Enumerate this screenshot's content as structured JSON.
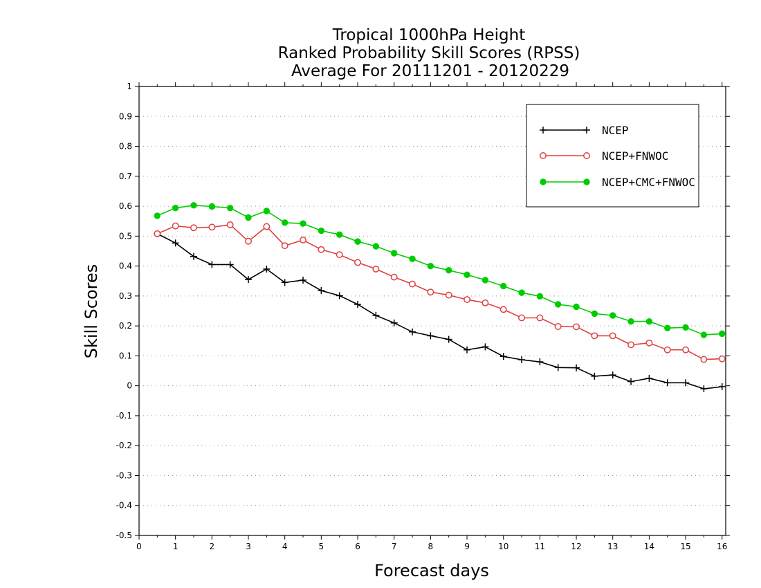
{
  "chart_data": {
    "type": "line",
    "title_lines": [
      "Tropical 1000hPa Height",
      "Ranked Probability Skill Scores (RPSS)",
      "Average For 20111201 - 20120229"
    ],
    "xlabel": "Forecast days",
    "ylabel": "Skill Scores",
    "xlim": [
      0,
      16.1
    ],
    "ylim": [
      -0.5,
      1
    ],
    "xticks": [
      0,
      1,
      2,
      3,
      4,
      5,
      6,
      7,
      8,
      9,
      10,
      11,
      12,
      13,
      14,
      15,
      16
    ],
    "yticks": [
      -0.5,
      -0.4,
      -0.3,
      -0.2,
      -0.1,
      0,
      0.1,
      0.2,
      0.3,
      0.4,
      0.5,
      0.6,
      0.7,
      0.8,
      0.9,
      1
    ],
    "ytick_labels": [
      "-0.5",
      "-0.4",
      "-0.3",
      "-0.2",
      "-0.1",
      "0",
      "0.1",
      "0.2",
      "0.3",
      "0.4",
      "0.5",
      "0.6",
      "0.7",
      "0.8",
      "0.9",
      "1"
    ],
    "grid": "horizontal dotted",
    "legend_position": "top-right",
    "x": [
      0.5,
      1,
      1.5,
      2,
      2.5,
      3,
      3.5,
      4,
      4.5,
      5,
      5.5,
      6,
      6.5,
      7,
      7.5,
      8,
      8.5,
      9,
      9.5,
      10,
      10.5,
      11,
      11.5,
      12,
      12.5,
      13,
      13.5,
      14,
      14.5,
      15,
      15.5,
      16
    ],
    "series": [
      {
        "name": "NCEP",
        "color": "#000000",
        "marker": "plus",
        "values": [
          0.508,
          0.477,
          0.432,
          0.405,
          0.405,
          0.355,
          0.39,
          0.345,
          0.353,
          0.318,
          0.301,
          0.272,
          0.235,
          0.21,
          0.18,
          0.167,
          0.155,
          0.12,
          0.13,
          0.098,
          0.087,
          0.08,
          0.061,
          0.06,
          0.032,
          0.036,
          0.014,
          0.025,
          0.01,
          0.01,
          -0.01,
          -0.003
        ]
      },
      {
        "name": "NCEP+FNWOC",
        "color": "#e04040",
        "marker": "open-circle",
        "values": [
          0.508,
          0.534,
          0.528,
          0.53,
          0.538,
          0.483,
          0.532,
          0.468,
          0.487,
          0.455,
          0.438,
          0.412,
          0.39,
          0.363,
          0.34,
          0.313,
          0.303,
          0.288,
          0.277,
          0.255,
          0.227,
          0.227,
          0.198,
          0.197,
          0.167,
          0.167,
          0.137,
          0.143,
          0.12,
          0.12,
          0.088,
          0.09
        ]
      },
      {
        "name": "NCEP+CMC+FNWOC",
        "color": "#00cc00",
        "marker": "filled-circle",
        "values": [
          0.568,
          0.594,
          0.603,
          0.599,
          0.594,
          0.562,
          0.584,
          0.545,
          0.542,
          0.518,
          0.505,
          0.482,
          0.466,
          0.443,
          0.424,
          0.4,
          0.386,
          0.371,
          0.353,
          0.333,
          0.311,
          0.299,
          0.272,
          0.264,
          0.241,
          0.235,
          0.215,
          0.215,
          0.193,
          0.195,
          0.17,
          0.174
        ]
      }
    ]
  }
}
